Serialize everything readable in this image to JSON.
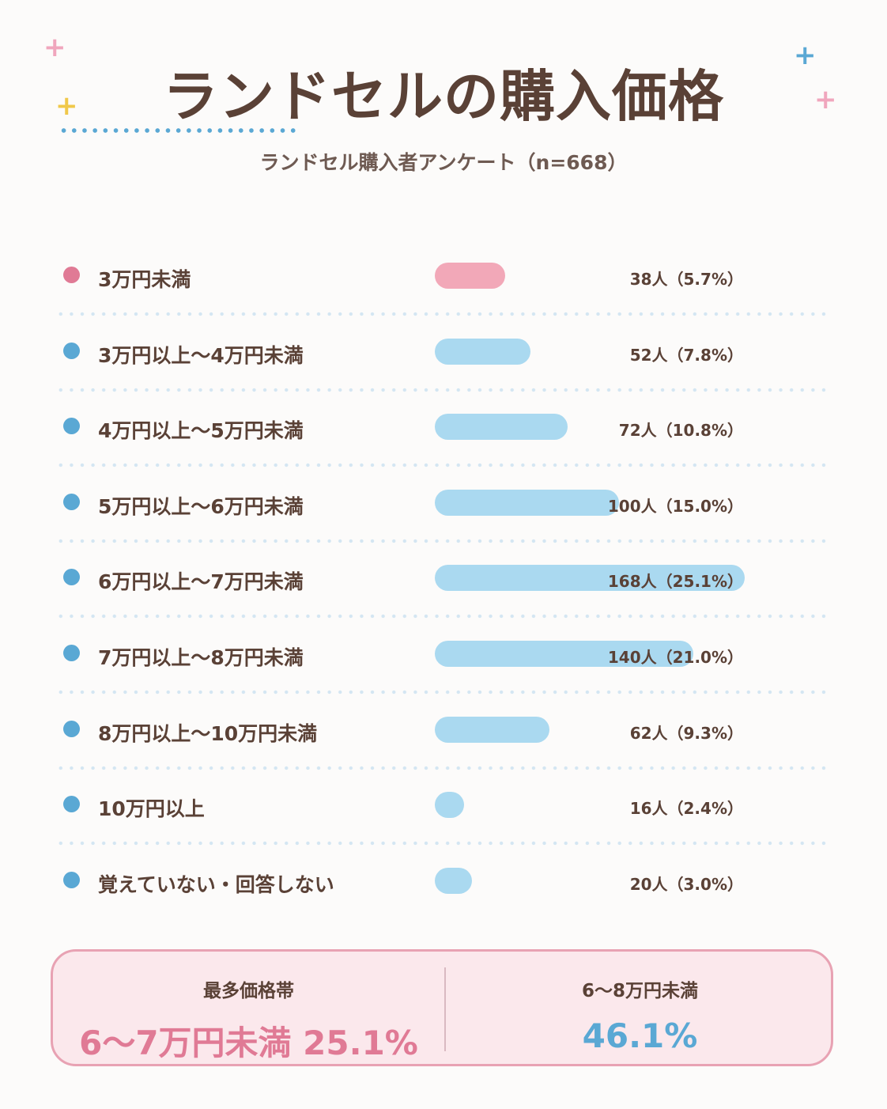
{
  "title": "ランドセルの購入価格",
  "subtitle": "ランドセル購入者アンケート（n=668）",
  "colors": {
    "highlight": "#e07a95",
    "highlight_bar": "#f2a8b8",
    "accent": "#5aa8d4",
    "accent_bar": "#aad9f0",
    "text": "#5a4136",
    "yellow": "#f0c84a"
  },
  "decorations": {
    "plus_glyph": "+"
  },
  "chart_data": {
    "type": "bar",
    "orientation": "horizontal",
    "categories": [
      "3万円未満",
      "3万円以上〜4万円未満",
      "4万円以上〜5万円未満",
      "5万円以上〜6万円未満",
      "6万円以上〜7万円未満",
      "7万円以上〜8万円未満",
      "8万円以上〜10万円未満",
      "10万円以上",
      "覚えていない・回答しない"
    ],
    "values": [
      38,
      52,
      72,
      100,
      168,
      140,
      62,
      16,
      20
    ],
    "percents": [
      5.7,
      7.8,
      10.8,
      15.0,
      25.1,
      21.0,
      9.3,
      2.4,
      3.0
    ],
    "value_labels": [
      "38人（5.7%）",
      "52人（7.8%）",
      "72人（10.8%）",
      "100人（15.0%）",
      "168人（25.1%）",
      "140人（21.0%）",
      "62人（9.3%）",
      "16人（2.4%）",
      "20人（3.0%）"
    ],
    "highlighted_index": 0,
    "xlim": [
      0,
      168
    ]
  },
  "summary": {
    "left_caption": "最多価格帯",
    "left_value": "6〜7万円未満 25.1%",
    "right_caption": "6〜8万円未満",
    "right_value": "46.1%"
  }
}
